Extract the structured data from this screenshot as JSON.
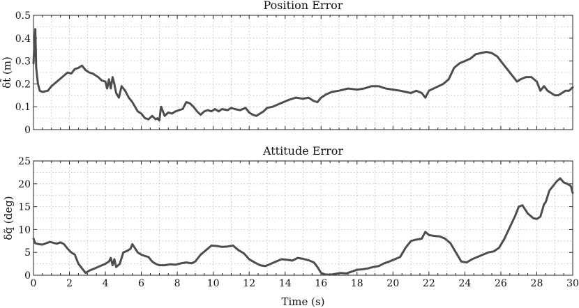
{
  "chart_data": [
    {
      "type": "line",
      "title": "Position Error",
      "ylabel": "δt̃ (m)",
      "xlabel": "",
      "xlim": [
        0,
        30
      ],
      "ylim": [
        0,
        0.5
      ],
      "grid": true,
      "x_ticks": [
        0,
        2,
        4,
        6,
        8,
        10,
        12,
        14,
        16,
        18,
        20,
        22,
        24,
        26,
        28,
        30
      ],
      "y_ticks": [
        "0",
        "0.1",
        "0.2",
        "0.3",
        "0.4",
        "0.5"
      ],
      "series": [
        {
          "x": [
            0.0,
            0.05,
            0.1,
            0.15,
            0.25,
            0.35,
            0.5,
            0.8,
            1.0,
            1.3,
            1.6,
            1.9,
            2.1,
            2.3,
            2.5,
            2.7,
            2.9,
            3.1,
            3.3,
            3.6,
            3.8,
            4.0,
            4.1,
            4.2,
            4.3,
            4.4,
            4.5,
            4.6,
            4.75,
            4.9,
            5.1,
            5.3,
            5.5,
            5.8,
            6.0,
            6.2,
            6.4,
            6.6,
            6.8,
            6.9,
            7.0,
            7.1,
            7.3,
            7.5,
            7.7,
            7.9,
            8.1,
            8.3,
            8.5,
            8.7,
            8.9,
            9.1,
            9.3,
            9.5,
            9.7,
            9.9,
            10.1,
            10.3,
            10.5,
            10.8,
            11.0,
            11.2,
            11.5,
            11.8,
            12.0,
            12.2,
            12.4,
            12.6,
            12.8,
            13.0,
            13.3,
            13.6,
            13.9,
            14.2,
            14.6,
            15.0,
            15.3,
            15.6,
            15.8,
            16.0,
            16.3,
            16.6,
            17.0,
            17.5,
            18.0,
            18.4,
            18.8,
            19.2,
            19.6,
            20.0,
            20.4,
            20.7,
            21.0,
            21.3,
            21.6,
            21.8,
            22.0,
            22.4,
            22.8,
            23.1,
            23.4,
            23.7,
            24.0,
            24.3,
            24.6,
            24.9,
            25.2,
            25.5,
            25.8,
            26.1,
            26.4,
            26.7,
            26.9,
            27.1,
            27.4,
            27.7,
            28.0,
            28.2,
            28.4,
            28.6,
            28.8,
            29.0,
            29.2,
            29.4,
            29.6,
            29.8,
            30.0
          ],
          "values": [
            0.29,
            0.37,
            0.44,
            0.27,
            0.2,
            0.17,
            0.165,
            0.17,
            0.19,
            0.21,
            0.23,
            0.25,
            0.245,
            0.265,
            0.27,
            0.28,
            0.26,
            0.25,
            0.245,
            0.23,
            0.215,
            0.21,
            0.18,
            0.22,
            0.18,
            0.23,
            0.2,
            0.16,
            0.14,
            0.19,
            0.17,
            0.14,
            0.12,
            0.08,
            0.07,
            0.05,
            0.045,
            0.06,
            0.045,
            0.05,
            0.04,
            0.1,
            0.06,
            0.075,
            0.07,
            0.08,
            0.085,
            0.09,
            0.12,
            0.115,
            0.1,
            0.08,
            0.065,
            0.08,
            0.085,
            0.08,
            0.09,
            0.08,
            0.09,
            0.085,
            0.095,
            0.09,
            0.085,
            0.095,
            0.075,
            0.065,
            0.06,
            0.07,
            0.08,
            0.095,
            0.1,
            0.11,
            0.12,
            0.13,
            0.14,
            0.135,
            0.14,
            0.125,
            0.12,
            0.14,
            0.155,
            0.165,
            0.17,
            0.18,
            0.175,
            0.18,
            0.19,
            0.19,
            0.18,
            0.175,
            0.17,
            0.165,
            0.16,
            0.17,
            0.16,
            0.14,
            0.17,
            0.185,
            0.2,
            0.22,
            0.27,
            0.29,
            0.3,
            0.31,
            0.33,
            0.335,
            0.34,
            0.335,
            0.32,
            0.29,
            0.26,
            0.23,
            0.21,
            0.22,
            0.23,
            0.23,
            0.21,
            0.17,
            0.19,
            0.17,
            0.16,
            0.15,
            0.15,
            0.16,
            0.17,
            0.17,
            0.185
          ]
        }
      ]
    },
    {
      "type": "line",
      "title": "Attitude Error",
      "ylabel": "δq̃ (deg)",
      "xlabel": "Time (s)",
      "xlim": [
        0,
        30
      ],
      "ylim": [
        0,
        25
      ],
      "grid": true,
      "x_ticks": [
        0,
        2,
        4,
        6,
        8,
        10,
        12,
        14,
        16,
        18,
        20,
        22,
        24,
        26,
        28,
        30
      ],
      "y_ticks": [
        "0",
        "5",
        "10",
        "15",
        "20",
        "25"
      ],
      "series": [
        {
          "x": [
            0.0,
            0.1,
            0.3,
            0.5,
            0.7,
            0.9,
            1.1,
            1.3,
            1.5,
            1.7,
            1.9,
            2.1,
            2.3,
            2.5,
            2.7,
            2.9,
            3.1,
            3.4,
            3.7,
            4.0,
            4.2,
            4.3,
            4.4,
            4.5,
            4.6,
            4.8,
            5.0,
            5.2,
            5.4,
            5.5,
            5.6,
            5.8,
            6.0,
            6.2,
            6.4,
            6.6,
            6.8,
            7.0,
            7.3,
            7.6,
            7.9,
            8.2,
            8.5,
            8.8,
            9.0,
            9.3,
            9.6,
            9.9,
            10.2,
            10.5,
            10.8,
            11.1,
            11.4,
            11.7,
            12.0,
            12.3,
            12.6,
            12.9,
            13.2,
            13.5,
            13.8,
            14.1,
            14.4,
            14.7,
            15.0,
            15.3,
            15.6,
            15.8,
            16.0,
            16.2,
            16.5,
            16.8,
            17.1,
            17.4,
            17.7,
            18.0,
            18.3,
            18.6,
            18.9,
            19.2,
            19.5,
            19.8,
            20.1,
            20.4,
            20.7,
            21.0,
            21.3,
            21.6,
            21.8,
            22.0,
            22.3,
            22.6,
            22.9,
            23.2,
            23.5,
            23.8,
            24.1,
            24.4,
            24.7,
            25.0,
            25.3,
            25.6,
            25.9,
            26.2,
            26.5,
            26.8,
            27.0,
            27.2,
            27.5,
            27.8,
            28.0,
            28.2,
            28.4,
            28.5,
            28.7,
            28.9,
            29.1,
            29.3,
            29.5,
            29.7,
            29.9,
            30.0
          ],
          "values": [
            8.0,
            7.0,
            6.8,
            6.7,
            7.0,
            7.3,
            7.1,
            6.9,
            7.2,
            6.8,
            5.8,
            5.0,
            4.5,
            2.5,
            1.5,
            0.5,
            1.0,
            1.5,
            2.0,
            2.5,
            3.0,
            3.8,
            2.2,
            3.5,
            1.8,
            2.5,
            5.0,
            5.3,
            5.8,
            6.8,
            6.2,
            5.0,
            4.5,
            4.2,
            4.0,
            3.0,
            2.5,
            2.2,
            2.2,
            2.4,
            2.3,
            2.6,
            2.8,
            2.6,
            3.0,
            4.5,
            5.5,
            6.5,
            6.4,
            6.2,
            6.3,
            6.5,
            5.5,
            4.8,
            3.5,
            2.8,
            2.2,
            2.0,
            2.5,
            3.0,
            3.5,
            3.4,
            3.2,
            3.8,
            3.6,
            3.3,
            2.8,
            1.8,
            0.5,
            0.2,
            0.1,
            0.3,
            0.5,
            0.4,
            0.8,
            1.2,
            1.3,
            1.5,
            1.8,
            2.0,
            2.6,
            3.0,
            3.5,
            4.0,
            6.0,
            7.5,
            7.8,
            8.0,
            9.5,
            8.8,
            8.6,
            8.5,
            8.0,
            7.0,
            5.0,
            3.0,
            2.8,
            3.5,
            4.0,
            4.5,
            5.0,
            5.2,
            6.0,
            8.0,
            10.5,
            13.0,
            15.0,
            15.3,
            13.5,
            12.5,
            12.3,
            12.8,
            15.5,
            16.0,
            18.5,
            19.5,
            20.5,
            21.2,
            20.3,
            20.0,
            19.5,
            18.0
          ]
        }
      ]
    }
  ]
}
